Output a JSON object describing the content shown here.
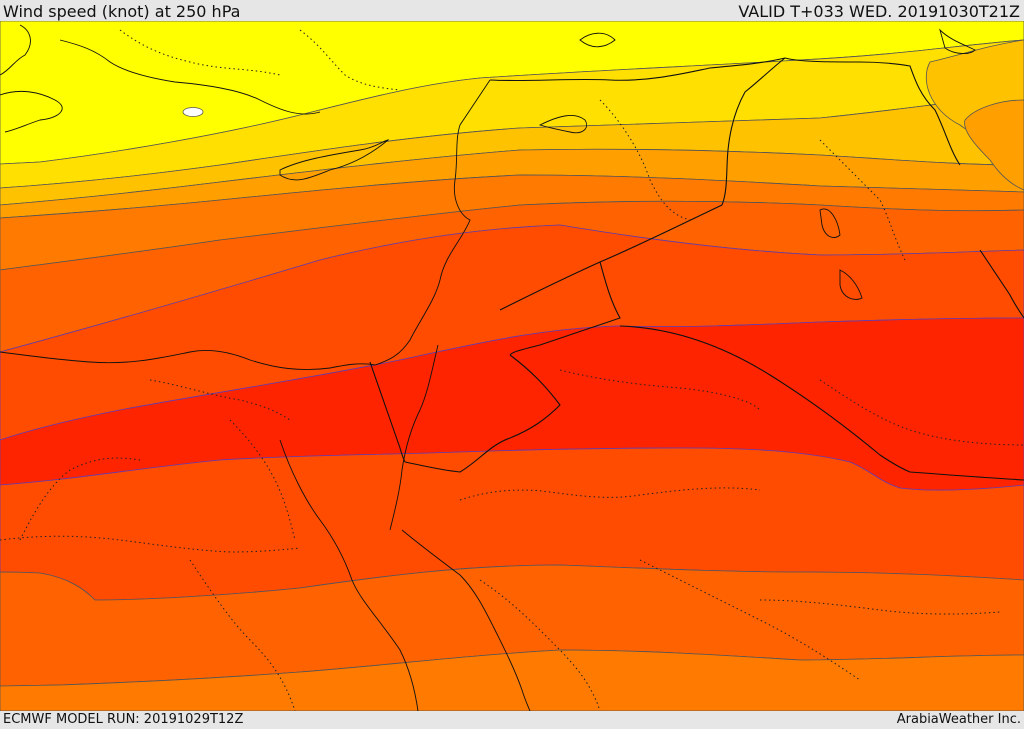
{
  "header": {
    "title": "Wind speed (knot) at 250 hPa",
    "valid_time": "VALID T+033 WED. 20191030T21Z"
  },
  "footer": {
    "model_run": "ECMWF MODEL RUN: 20191029T12Z",
    "credit": "ArabiaWeather Inc."
  },
  "map": {
    "field": "wind-speed-250hPa",
    "band_colors": [
      "#ffff00",
      "#ffe100",
      "#ffc100",
      "#ff9f00",
      "#ff7a00",
      "#ff6000",
      "#ff4a00",
      "#ff3600",
      "#ff2200"
    ],
    "contour_color_outer": "#555555",
    "contour_color_core": "#6a3aa8",
    "land_feature": "white-spot-icon"
  }
}
